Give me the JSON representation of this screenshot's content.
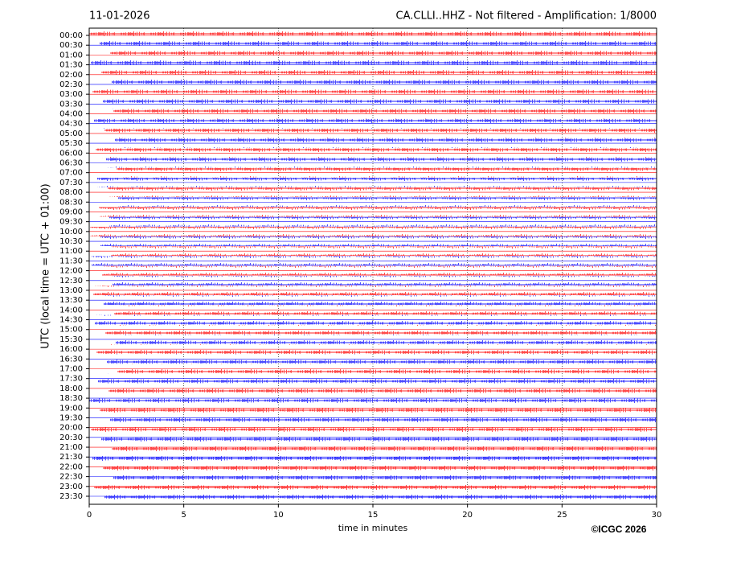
{
  "chart_data": {
    "type": "helicorder",
    "date": "11-01-2026",
    "title": "CA.CLLI..HHZ - Not filtered - Amplification: 1/8000",
    "ylabel": "UTC (local time = UTC + 01:00)",
    "xlabel": "time in minutes",
    "categories": [
      "00:00",
      "00:30",
      "01:00",
      "01:30",
      "02:00",
      "02:30",
      "03:00",
      "03:30",
      "04:00",
      "04:30",
      "05:00",
      "05:30",
      "06:00",
      "06:30",
      "07:00",
      "07:30",
      "08:00",
      "08:30",
      "09:00",
      "09:30",
      "10:00",
      "10:30",
      "11:00",
      "11:30",
      "12:00",
      "12:30",
      "13:00",
      "13:30",
      "14:00",
      "14:30",
      "15:00",
      "15:30",
      "16:00",
      "16:30",
      "17:00",
      "17:30",
      "18:00",
      "18:30",
      "19:00",
      "19:30",
      "20:00",
      "20:30",
      "21:00",
      "21:30",
      "22:00",
      "22:30",
      "23:00",
      "23:30"
    ],
    "colors": [
      "#ff0000",
      "#0000ff"
    ],
    "xlim": [
      0,
      30
    ],
    "xticks": [
      0,
      5,
      10,
      15,
      20,
      25,
      30
    ],
    "grid": true
  },
  "footer": {
    "copyright": "©ICGC 2026"
  }
}
